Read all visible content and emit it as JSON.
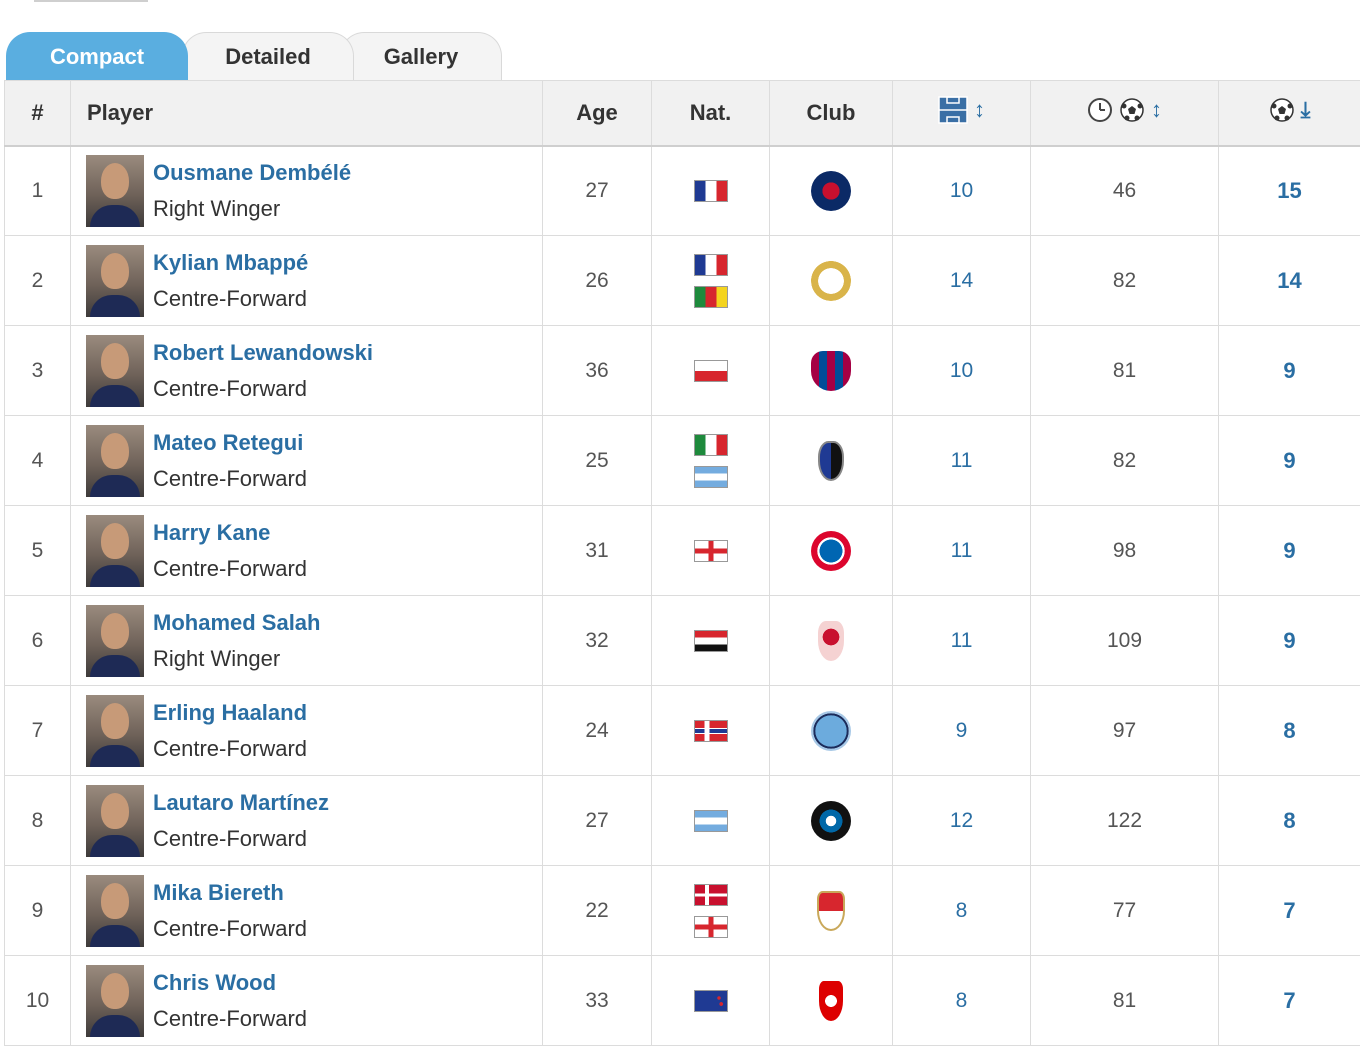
{
  "tabs": [
    {
      "label": "Compact",
      "active": true
    },
    {
      "label": "Detailed",
      "active": false
    },
    {
      "label": "Gallery",
      "active": false
    }
  ],
  "columns": {
    "rank": "#",
    "player": "Player",
    "age": "Age",
    "nat": "Nat.",
    "club": "Club",
    "appearances_icon": "pitch-icon",
    "minutes_per_goal_icon": "clock-ball-icon",
    "goals_icon": "ball-icon",
    "sort_both": "↕",
    "sort_down": "⤓"
  },
  "rows": [
    {
      "rank": "1",
      "name": "Ousmane Dembélé",
      "position": "Right Winger",
      "age": "27",
      "flags": [
        "France"
      ],
      "club": "Paris Saint-Germain",
      "apps": "10",
      "mins_per_goal": "46",
      "goals": "15"
    },
    {
      "rank": "2",
      "name": "Kylian Mbappé",
      "position": "Centre-Forward",
      "age": "26",
      "flags": [
        "France",
        "Cameroon"
      ],
      "club": "Real Madrid",
      "apps": "14",
      "mins_per_goal": "82",
      "goals": "14"
    },
    {
      "rank": "3",
      "name": "Robert Lewandowski",
      "position": "Centre-Forward",
      "age": "36",
      "flags": [
        "Poland"
      ],
      "club": "FC Barcelona",
      "apps": "10",
      "mins_per_goal": "81",
      "goals": "9"
    },
    {
      "rank": "4",
      "name": "Mateo Retegui",
      "position": "Centre-Forward",
      "age": "25",
      "flags": [
        "Italy",
        "Argentina"
      ],
      "club": "Atalanta",
      "apps": "11",
      "mins_per_goal": "82",
      "goals": "9"
    },
    {
      "rank": "5",
      "name": "Harry Kane",
      "position": "Centre-Forward",
      "age": "31",
      "flags": [
        "England"
      ],
      "club": "Bayern Munich",
      "apps": "11",
      "mins_per_goal": "98",
      "goals": "9"
    },
    {
      "rank": "6",
      "name": "Mohamed Salah",
      "position": "Right Winger",
      "age": "32",
      "flags": [
        "Egypt"
      ],
      "club": "Liverpool",
      "apps": "11",
      "mins_per_goal": "109",
      "goals": "9"
    },
    {
      "rank": "7",
      "name": "Erling Haaland",
      "position": "Centre-Forward",
      "age": "24",
      "flags": [
        "Norway"
      ],
      "club": "Manchester City",
      "apps": "9",
      "mins_per_goal": "97",
      "goals": "8"
    },
    {
      "rank": "8",
      "name": "Lautaro Martínez",
      "position": "Centre-Forward",
      "age": "27",
      "flags": [
        "Argentina"
      ],
      "club": "Inter Milan",
      "apps": "12",
      "mins_per_goal": "122",
      "goals": "8"
    },
    {
      "rank": "9",
      "name": "Mika Biereth",
      "position": "Centre-Forward",
      "age": "22",
      "flags": [
        "Denmark",
        "England"
      ],
      "club": "AS Monaco",
      "apps": "8",
      "mins_per_goal": "77",
      "goals": "7"
    },
    {
      "rank": "10",
      "name": "Chris Wood",
      "position": "Centre-Forward",
      "age": "33",
      "flags": [
        "New Zealand"
      ],
      "club": "Nottingham Forest",
      "apps": "8",
      "mins_per_goal": "81",
      "goals": "7"
    }
  ],
  "colors": {
    "accent": "#5aaee0",
    "link": "#2a6ea3"
  }
}
